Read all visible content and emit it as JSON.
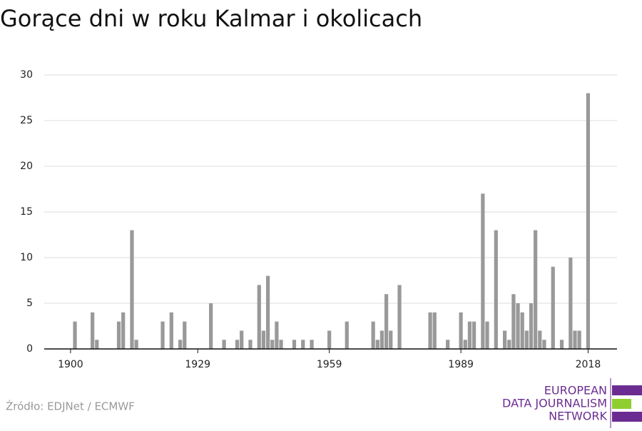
{
  "chart_data": {
    "type": "bar",
    "title": "Gorące dni w roku Kalmar i okolicach",
    "source": "Źródło: EDJNet / ECMWF",
    "x": [
      1901,
      1905,
      1906,
      1911,
      1912,
      1914,
      1915,
      1921,
      1923,
      1925,
      1926,
      1932,
      1935,
      1938,
      1939,
      1941,
      1943,
      1944,
      1945,
      1946,
      1947,
      1948,
      1951,
      1953,
      1955,
      1959,
      1963,
      1969,
      1970,
      1971,
      1972,
      1973,
      1975,
      1982,
      1983,
      1986,
      1989,
      1990,
      1991,
      1992,
      1994,
      1995,
      1997,
      1999,
      2000,
      2001,
      2002,
      2003,
      2004,
      2005,
      2006,
      2007,
      2008,
      2010,
      2012,
      2014,
      2015,
      2016,
      2018
    ],
    "values": [
      3,
      4,
      1,
      3,
      4,
      13,
      1,
      3,
      4,
      1,
      3,
      5,
      1,
      1,
      2,
      1,
      7,
      2,
      8,
      1,
      3,
      1,
      1,
      1,
      1,
      2,
      3,
      3,
      1,
      2,
      6,
      2,
      7,
      4,
      4,
      1,
      4,
      1,
      3,
      3,
      17,
      3,
      13,
      2,
      1,
      6,
      5,
      4,
      2,
      5,
      13,
      2,
      1,
      9,
      1,
      10,
      2,
      2,
      28
    ],
    "color": "#999999",
    "xlim": [
      1894,
      2024.6
    ],
    "xticks": [
      1900,
      1929,
      1959,
      1989,
      2018
    ],
    "ylim": [
      0,
      30
    ],
    "yticks": [
      0,
      5,
      10,
      15,
      20,
      25,
      30
    ],
    "grid": true
  },
  "logo": {
    "lines": [
      "EUROPEAN",
      "DATA JOURNALISM",
      "NETWORK"
    ]
  }
}
